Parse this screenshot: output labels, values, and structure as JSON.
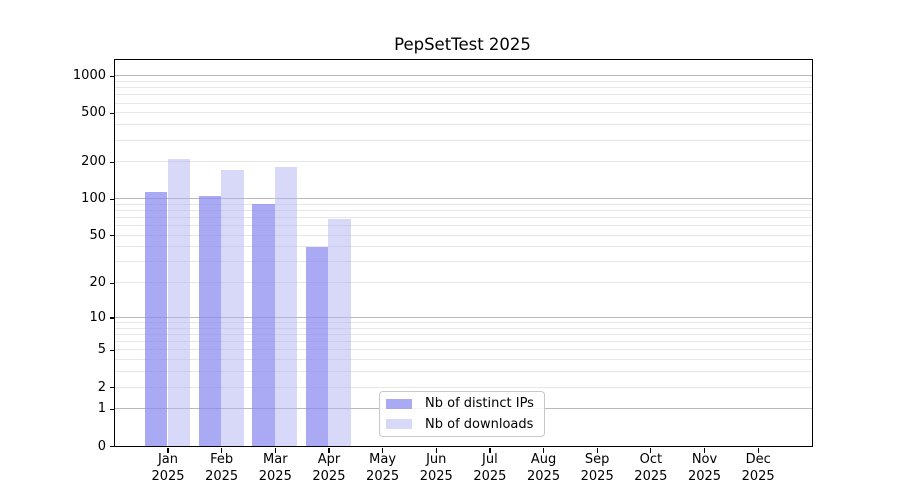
{
  "title": "PepSetTest 2025",
  "legend": {
    "items": [
      {
        "label": "Nb of distinct IPs"
      },
      {
        "label": "Nb of downloads"
      }
    ]
  },
  "chart_data": {
    "type": "bar",
    "title": "PepSetTest 2025",
    "categories": [
      "Jan",
      "Feb",
      "Mar",
      "Apr",
      "May",
      "Jun",
      "Jul",
      "Aug",
      "Sep",
      "Oct",
      "Nov",
      "Dec"
    ],
    "category_year": "2025",
    "series": [
      {
        "name": "Nb of distinct IPs",
        "color": "#8888f0",
        "alpha": 0.72,
        "values": [
          114,
          105,
          90,
          40,
          null,
          null,
          null,
          null,
          null,
          null,
          null,
          null
        ]
      },
      {
        "name": "Nb of downloads",
        "color": "#b4b4f2",
        "alpha": 0.52,
        "values": [
          212,
          172,
          183,
          68,
          null,
          null,
          null,
          null,
          null,
          null,
          null,
          null
        ]
      }
    ],
    "xlabel": "",
    "ylabel": "",
    "y_ticks": [
      0,
      1,
      2,
      5,
      10,
      20,
      50,
      100,
      200,
      500,
      1000
    ],
    "y_scale": "log10(1+v)",
    "ylim": [
      0,
      1340
    ],
    "grid": "horizontal",
    "grid_minor_per_decade": [
      2,
      3,
      4,
      5,
      6,
      7,
      8,
      9
    ],
    "legend_position": "inside-bottom-center",
    "colors": {
      "grid_major": "#b9b9b9",
      "grid_minor": "#e7e7e7",
      "axis": "#000000",
      "background": "#ffffff"
    }
  }
}
